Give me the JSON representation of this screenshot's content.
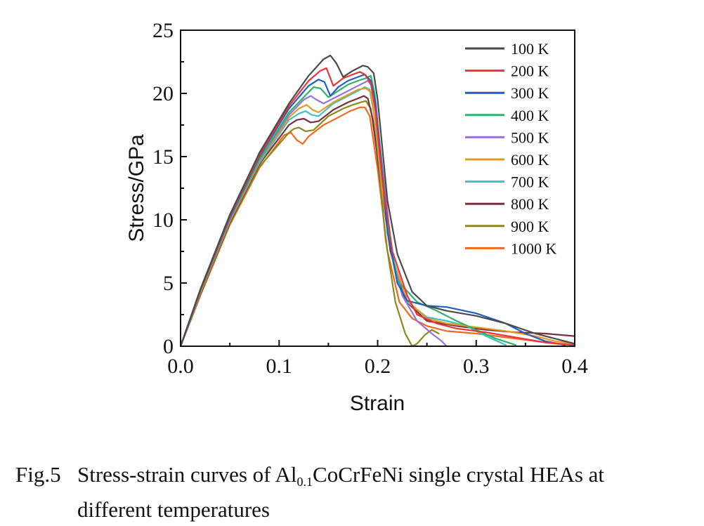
{
  "chart_data": {
    "type": "line",
    "title": "",
    "xlabel": "Strain",
    "ylabel": "Stress/GPa",
    "xlim": [
      0,
      0.4
    ],
    "ylim": [
      0,
      25
    ],
    "xticks": [
      0.0,
      0.1,
      0.2,
      0.3,
      0.4
    ],
    "xtick_labels": [
      "0.0",
      "0.1",
      "0.2",
      "0.3",
      "0.4"
    ],
    "yticks": [
      0,
      5,
      10,
      15,
      20,
      25
    ],
    "ytick_labels": [
      "0",
      "5",
      "10",
      "15",
      "20",
      "25"
    ],
    "grid": false,
    "legend_position": "top-right",
    "series": [
      {
        "name": "100 K",
        "color": "#4a4a4a",
        "x": [
          0,
          0.02,
          0.05,
          0.08,
          0.11,
          0.13,
          0.145,
          0.152,
          0.158,
          0.165,
          0.175,
          0.185,
          0.19,
          0.196,
          0.2,
          0.205,
          0.21,
          0.22,
          0.235,
          0.25,
          0.27,
          0.3,
          0.33,
          0.36,
          0.39,
          0.4
        ],
        "y": [
          0,
          4.5,
          10.4,
          15.3,
          19.2,
          21.4,
          22.7,
          23.0,
          22.4,
          21.3,
          21.8,
          22.2,
          22.1,
          21.6,
          19.5,
          15.5,
          11.5,
          7.3,
          4.3,
          3.2,
          2.8,
          2.4,
          1.8,
          1.0,
          0.4,
          0.2
        ]
      },
      {
        "name": "200 K",
        "color": "#e8343a",
        "x": [
          0,
          0.02,
          0.05,
          0.08,
          0.11,
          0.13,
          0.142,
          0.148,
          0.155,
          0.165,
          0.175,
          0.182,
          0.187,
          0.193,
          0.198,
          0.205,
          0.215,
          0.23,
          0.24,
          0.26,
          0.28,
          0.31,
          0.34,
          0.37,
          0.4
        ],
        "y": [
          0,
          4.4,
          10.3,
          15.1,
          19.0,
          21.0,
          21.8,
          22.0,
          20.6,
          21.2,
          21.5,
          21.7,
          21.5,
          20.8,
          18.5,
          13.0,
          7.5,
          4.0,
          2.5,
          1.8,
          1.4,
          1.1,
          0.7,
          0.3,
          0.1
        ]
      },
      {
        "name": "300 K",
        "color": "#1f5fbf",
        "x": [
          0,
          0.02,
          0.05,
          0.08,
          0.11,
          0.13,
          0.14,
          0.146,
          0.152,
          0.16,
          0.17,
          0.18,
          0.187,
          0.193,
          0.198,
          0.203,
          0.21,
          0.22,
          0.23,
          0.25,
          0.27,
          0.3,
          0.33,
          0.35,
          0.37,
          0.39
        ],
        "y": [
          0,
          4.4,
          10.2,
          15.0,
          18.8,
          20.6,
          21.1,
          20.9,
          19.8,
          20.5,
          21.0,
          21.3,
          21.5,
          21.0,
          19.2,
          15.0,
          9.0,
          5.0,
          3.6,
          3.2,
          3.1,
          2.6,
          1.8,
          1.0,
          0.4,
          0.1
        ]
      },
      {
        "name": "400 K",
        "color": "#2db36b",
        "x": [
          0,
          0.02,
          0.05,
          0.08,
          0.11,
          0.125,
          0.135,
          0.142,
          0.15,
          0.16,
          0.17,
          0.18,
          0.188,
          0.193,
          0.197,
          0.202,
          0.21,
          0.22,
          0.24,
          0.26,
          0.28,
          0.3,
          0.32,
          0.34
        ],
        "y": [
          0,
          4.3,
          10.1,
          14.8,
          18.5,
          19.7,
          20.5,
          20.4,
          19.7,
          20.2,
          20.7,
          21.0,
          21.2,
          21.4,
          20.0,
          16.0,
          9.5,
          5.2,
          3.5,
          2.8,
          2.0,
          1.3,
          0.6,
          0.1
        ]
      },
      {
        "name": "500 K",
        "color": "#9a72d8",
        "x": [
          0,
          0.02,
          0.05,
          0.08,
          0.11,
          0.125,
          0.132,
          0.138,
          0.145,
          0.16,
          0.175,
          0.185,
          0.19,
          0.194,
          0.2,
          0.208,
          0.215,
          0.225,
          0.24,
          0.255,
          0.265,
          0.27
        ],
        "y": [
          0,
          4.3,
          10.0,
          14.7,
          18.3,
          19.5,
          19.8,
          19.5,
          19.2,
          19.8,
          20.4,
          20.8,
          21.0,
          20.6,
          17.5,
          12.0,
          7.0,
          4.0,
          2.0,
          1.0,
          0.4,
          0.0
        ]
      },
      {
        "name": "600 K",
        "color": "#e39a1f",
        "x": [
          0,
          0.02,
          0.05,
          0.08,
          0.11,
          0.12,
          0.128,
          0.134,
          0.14,
          0.155,
          0.17,
          0.18,
          0.188,
          0.193,
          0.198,
          0.205,
          0.215,
          0.23,
          0.25,
          0.27,
          0.3,
          0.33,
          0.36,
          0.38,
          0.4
        ],
        "y": [
          0,
          4.2,
          9.9,
          14.6,
          18.1,
          18.8,
          19.1,
          18.7,
          18.5,
          19.3,
          19.9,
          20.3,
          20.4,
          20.1,
          17.5,
          12.0,
          7.0,
          3.6,
          2.2,
          1.8,
          1.5,
          1.2,
          0.8,
          0.4,
          0.2
        ]
      },
      {
        "name": "700 K",
        "color": "#3cc2c2",
        "x": [
          0,
          0.02,
          0.05,
          0.08,
          0.11,
          0.12,
          0.127,
          0.133,
          0.14,
          0.155,
          0.17,
          0.18,
          0.187,
          0.192,
          0.197,
          0.204,
          0.215,
          0.23,
          0.25,
          0.27,
          0.29,
          0.31,
          0.33
        ],
        "y": [
          0,
          4.2,
          9.9,
          14.5,
          17.9,
          18.4,
          18.6,
          18.3,
          18.2,
          19.2,
          19.8,
          20.2,
          20.5,
          20.3,
          18.0,
          12.5,
          7.0,
          3.5,
          2.3,
          2.0,
          1.6,
          0.8,
          0.1
        ]
      },
      {
        "name": "800 K",
        "color": "#7a2e3a",
        "x": [
          0,
          0.02,
          0.05,
          0.08,
          0.11,
          0.118,
          0.125,
          0.132,
          0.14,
          0.155,
          0.17,
          0.18,
          0.186,
          0.19,
          0.195,
          0.203,
          0.213,
          0.228,
          0.25,
          0.28,
          0.31,
          0.34,
          0.37,
          0.4
        ],
        "y": [
          0,
          4.1,
          9.8,
          14.4,
          17.5,
          17.9,
          18.0,
          17.7,
          17.8,
          18.7,
          19.3,
          19.6,
          19.8,
          19.6,
          18.0,
          13.0,
          7.5,
          3.6,
          2.0,
          1.6,
          1.3,
          1.1,
          1.0,
          0.8
        ]
      },
      {
        "name": "900 K",
        "color": "#8c8a1a",
        "x": [
          0,
          0.02,
          0.05,
          0.08,
          0.11,
          0.115,
          0.12,
          0.127,
          0.135,
          0.15,
          0.165,
          0.175,
          0.183,
          0.188,
          0.193,
          0.2,
          0.208,
          0.218,
          0.228,
          0.235,
          0.24,
          0.248,
          0.255,
          0.262
        ],
        "y": [
          0,
          4.1,
          9.7,
          14.2,
          16.9,
          17.2,
          17.3,
          17.0,
          17.1,
          18.2,
          18.8,
          19.1,
          19.3,
          19.4,
          18.8,
          15.0,
          8.5,
          3.5,
          1.0,
          0.0,
          0.2,
          0.9,
          1.3,
          1.0
        ]
      },
      {
        "name": "1000 K",
        "color": "#f06a1e",
        "x": [
          0,
          0.02,
          0.05,
          0.08,
          0.105,
          0.112,
          0.118,
          0.124,
          0.13,
          0.145,
          0.16,
          0.172,
          0.182,
          0.187,
          0.192,
          0.2,
          0.21,
          0.222,
          0.235,
          0.25,
          0.27,
          0.3,
          0.33,
          0.36,
          0.38,
          0.4
        ],
        "y": [
          0,
          4.0,
          9.6,
          14.1,
          16.7,
          16.9,
          16.3,
          16.0,
          16.6,
          17.5,
          18.1,
          18.6,
          18.9,
          18.9,
          18.2,
          14.0,
          7.5,
          3.5,
          2.2,
          1.6,
          1.2,
          1.0,
          0.7,
          0.4,
          0.2,
          0.1
        ]
      }
    ]
  },
  "caption": {
    "fig_no": "Fig.5",
    "text_before_sub": "Stress-strain curves of Al",
    "subscript": "0.1",
    "text_after_sub": "CoCrFeNi single crystal HEAs at",
    "line2": "different temperatures"
  }
}
